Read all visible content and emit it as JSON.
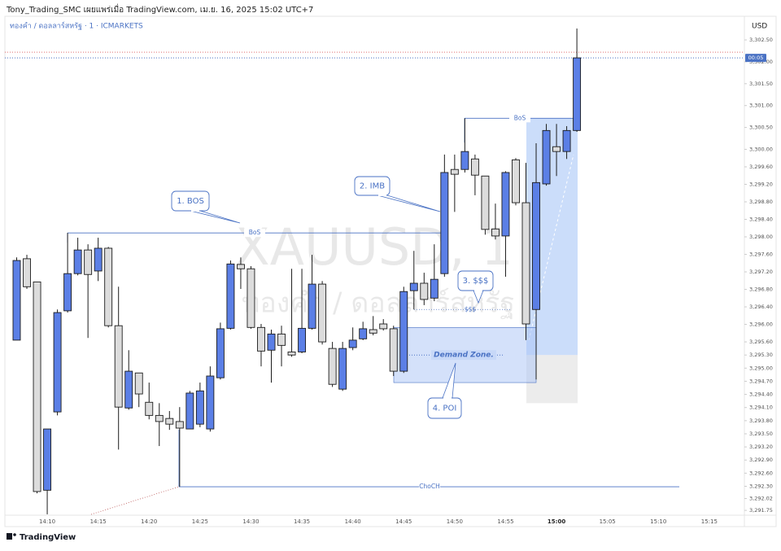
{
  "chart_data": {
    "type": "candlestick",
    "title": "Tony_Trading_SMC เผยแพร่เมื่อ TradingView.com, เม.ย. 16, 2025 15:02 UTC+7",
    "subtitle": "ทองคำ / ดอลลาร์สหรัฐ · 1 · ICMARKETS",
    "currency": "USD",
    "watermark": "XAUUSD, 1",
    "watermark_sub": "ทองคำ / ดอลลาร์สหรัฐ",
    "brand": "TradingView",
    "countdown": "00:05",
    "current_time_label": "15:00",
    "categories": [
      null,
      null,
      null,
      "14:10",
      null,
      null,
      null,
      null,
      "14:15",
      null,
      null,
      null,
      null,
      "14:20",
      null,
      null,
      null,
      null,
      "14:25",
      null,
      null,
      null,
      null,
      "14:30",
      null,
      null,
      null,
      null,
      "14:35",
      null,
      null,
      null,
      null,
      "14:40",
      null,
      null,
      null,
      null,
      "14:45",
      null,
      null,
      null,
      null,
      "14:50",
      null,
      null,
      null,
      null,
      "14:55",
      null,
      null,
      null,
      null,
      "15:00",
      null,
      null,
      null,
      null,
      "15:05",
      null,
      null,
      null,
      null,
      "15:10",
      null,
      null,
      null,
      null,
      "15:15"
    ],
    "open": [
      3295.64,
      3297.5,
      3296.97,
      3292.21,
      3294.0,
      3296.31,
      3297.16,
      3297.7,
      3297.22,
      3297.74,
      3295.97,
      3294.09,
      3294.89,
      3294.22,
      3293.92,
      3293.85,
      3293.78,
      3293.61,
      3293.72,
      3293.61,
      3294.78,
      3295.91,
      3297.37,
      3297.27,
      3295.93,
      3295.41,
      3295.78,
      3295.37,
      3295.37,
      3295.91,
      3296.92,
      3295.45,
      3294.52,
      3295.47,
      3295.67,
      3295.88,
      3296.01,
      3295.9,
      3294.93,
      3296.77,
      3296.94,
      3296.6,
      3297.16,
      3299.54,
      3299.54,
      3299.78,
      3299.39,
      3298.18,
      3298.02,
      3299.76,
      3298.78,
      3296.34,
      3299.21,
      3300.06,
      3299.95,
      3300.43,
      null,
      null,
      null,
      null,
      null,
      null,
      null,
      null,
      null,
      null,
      null,
      null,
      null
    ],
    "high": [
      3297.53,
      3297.59,
      3296.97,
      3293.61,
      3296.34,
      3298.09,
      3297.98,
      3297.83,
      3297.98,
      3297.77,
      3296.86,
      3295.41,
      3294.89,
      3294.67,
      3294.2,
      3294.02,
      3294.11,
      3294.48,
      3294.67,
      3295.04,
      3296.04,
      3297.46,
      3297.53,
      3297.33,
      3296.01,
      3295.88,
      3295.97,
      3297.27,
      3297.27,
      3297.59,
      3296.99,
      3295.6,
      3295.6,
      3295.93,
      3296.06,
      3296.19,
      3296.12,
      3295.97,
      3296.86,
      3297.68,
      3297.18,
      3297.83,
      3299.88,
      3299.88,
      3300.71,
      3299.88,
      3299.39,
      3298.76,
      3299.5,
      3299.8,
      3299.69,
      3300.14,
      3300.58,
      3300.58,
      3300.53,
      3302.76,
      null,
      null,
      null,
      null,
      null,
      null,
      null,
      null,
      null,
      null,
      null,
      null,
      null
    ],
    "low": [
      3295.64,
      3296.81,
      3292.14,
      3291.66,
      3293.92,
      3296.27,
      3297.12,
      3295.69,
      3296.99,
      3295.93,
      3293.14,
      3294.05,
      3294.11,
      3293.83,
      3293.22,
      3293.59,
      3292.29,
      3293.61,
      3293.65,
      3293.55,
      3294.74,
      3295.88,
      3296.81,
      3295.9,
      3295.04,
      3294.67,
      3295.04,
      3295.26,
      3295.34,
      3295.88,
      3295.54,
      3294.57,
      3294.48,
      3295.41,
      3295.64,
      3295.75,
      3295.86,
      3294.82,
      3294.89,
      3296.34,
      3296.44,
      3296.53,
      3297.09,
      3298.57,
      3299.47,
      3298.95,
      3298.05,
      3297.94,
      3297.09,
      3298.72,
      3295.64,
      3294.74,
      3299.17,
      3299.39,
      3299.78,
      3300.4,
      null,
      null,
      null,
      null,
      null,
      null,
      null,
      null,
      null,
      null,
      null,
      null,
      null
    ],
    "close": [
      3297.46,
      3296.86,
      3292.18,
      3293.61,
      3296.27,
      3297.16,
      3297.7,
      3297.14,
      3297.74,
      3295.97,
      3294.11,
      3294.93,
      3294.41,
      3293.92,
      3293.78,
      3293.72,
      3293.63,
      3294.43,
      3294.48,
      3294.82,
      3295.9,
      3297.38,
      3297.27,
      3295.93,
      3295.39,
      3295.78,
      3295.52,
      3295.3,
      3295.91,
      3296.92,
      3295.6,
      3294.63,
      3295.45,
      3295.64,
      3295.9,
      3295.8,
      3295.9,
      3294.93,
      3296.75,
      3296.94,
      3296.57,
      3297.03,
      3299.47,
      3299.43,
      3299.95,
      3299.41,
      3298.17,
      3298.02,
      3299.47,
      3298.78,
      3296.01,
      3299.24,
      3300.43,
      3299.95,
      3300.43,
      3302.09,
      null,
      null,
      null,
      null,
      null,
      null,
      null,
      null,
      null,
      null,
      null,
      null,
      null
    ],
    "up_color": "#5b7fe6",
    "down_color": "#dcdcdc",
    "wick_color": "#1c1c1c",
    "annotation_color": "#4a72c4",
    "ylim": [
      3291.64,
      3303.04
    ],
    "yticks": [
      {
        "value": 3302.5,
        "label": "3,302.50"
      },
      {
        "value": 3302.0,
        "label": "3,302.00"
      },
      {
        "value": 3301.5,
        "label": "3,301.50"
      },
      {
        "value": 3301.0,
        "label": "3,301.00"
      },
      {
        "value": 3300.5,
        "label": "3,300.50"
      },
      {
        "value": 3300.0,
        "label": "3,300.00"
      },
      {
        "value": 3299.6,
        "label": "3,299.60"
      },
      {
        "value": 3299.2,
        "label": "3,299.20"
      },
      {
        "value": 3298.8,
        "label": "3,298.80"
      },
      {
        "value": 3298.4,
        "label": "3,298.40"
      },
      {
        "value": 3298.0,
        "label": "3,298.00"
      },
      {
        "value": 3297.6,
        "label": "3,297.60"
      },
      {
        "value": 3297.2,
        "label": "3,297.20"
      },
      {
        "value": 3296.8,
        "label": "3,296.80"
      },
      {
        "value": 3296.4,
        "label": "3,296.40"
      },
      {
        "value": 3296.0,
        "label": "3,296.00"
      },
      {
        "value": 3295.6,
        "label": "3,295.60"
      },
      {
        "value": 3295.3,
        "label": "3,295.30"
      },
      {
        "value": 3295.0,
        "label": "3,295.00"
      },
      {
        "value": 3294.7,
        "label": "3,294.70"
      },
      {
        "value": 3294.4,
        "label": "3,294.40"
      },
      {
        "value": 3294.1,
        "label": "3,294.10"
      },
      {
        "value": 3293.8,
        "label": "3,293.80"
      },
      {
        "value": 3293.5,
        "label": "3,293.50"
      },
      {
        "value": 3293.2,
        "label": "3,293.20"
      },
      {
        "value": 3292.9,
        "label": "3,292.90"
      },
      {
        "value": 3292.6,
        "label": "3,292.60"
      },
      {
        "value": 3292.3,
        "label": "3,292.30"
      },
      {
        "value": 3292.02,
        "label": "3,292.02"
      },
      {
        "value": 3291.75,
        "label": "3,291.75"
      }
    ],
    "grid": false,
    "reference_line": {
      "value": 3302.22,
      "color": "#e07070"
    },
    "levels": [
      {
        "label": "BoS",
        "value": 3298.09
      },
      {
        "label": "BoS",
        "value": 3300.71
      },
      {
        "label": "ChoCH",
        "value": 3292.29
      },
      {
        "label": "$$$",
        "value": 3296.34
      }
    ],
    "zone": {
      "label": "Demand Zone.",
      "top": 3295.93,
      "bottom": 3294.67
    },
    "position": {
      "target": 3300.71,
      "entry": 3295.3,
      "stop": 3294.2
    },
    "callouts": [
      "1. BOS",
      "2. IMB",
      "3. $$$",
      "4. POI"
    ]
  }
}
